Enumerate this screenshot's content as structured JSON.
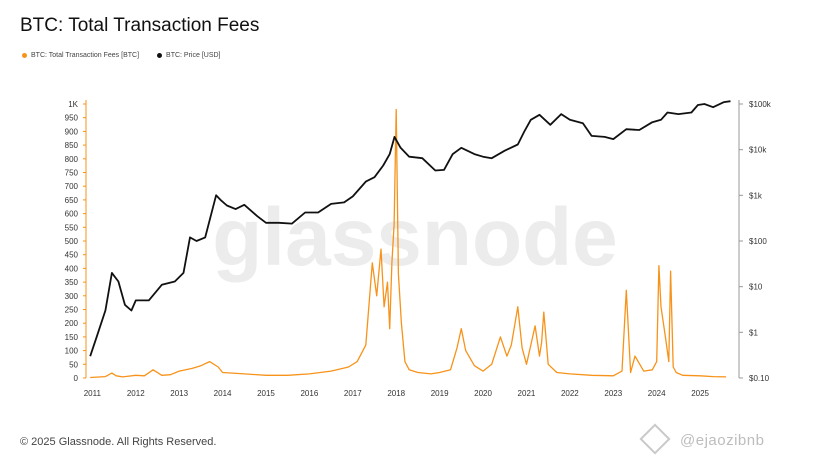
{
  "title": "BTC: Total Transaction Fees",
  "legend": [
    {
      "label": "BTC: Total Transaction Fees [BTC]",
      "color": "#f7931a"
    },
    {
      "label": "BTC: Price [USD]",
      "color": "#111111"
    }
  ],
  "footer": "© 2025 Glassnode. All Rights Reserved.",
  "watermark": "glassnode",
  "handle_watermark": "@ejaozibnb",
  "chart_data": {
    "type": "line",
    "title": "BTC: Total Transaction Fees",
    "x_ticks": [
      "2011",
      "2012",
      "2013",
      "2014",
      "2015",
      "2016",
      "2017",
      "2018",
      "2019",
      "2020",
      "2021",
      "2022",
      "2023",
      "2024",
      "2025"
    ],
    "left_axis": {
      "ticks": [
        "0",
        "50",
        "100",
        "150",
        "200",
        "250",
        "300",
        "350",
        "400",
        "450",
        "500",
        "550",
        "600",
        "650",
        "700",
        "750",
        "800",
        "850",
        "900",
        "950",
        "1K"
      ],
      "ylim": [
        0,
        1000
      ]
    },
    "right_axis": {
      "scale": "log",
      "ticks": [
        "$0.10",
        "$1",
        "$10",
        "$100",
        "$1k",
        "$10k",
        "$100k"
      ],
      "ylim": [
        0.1,
        100000
      ]
    },
    "grid": false,
    "legend_position": "top-left",
    "series": [
      {
        "name": "BTC: Total Transaction Fees [BTC]",
        "axis": "left",
        "color": "#f7931a",
        "x": [
          2010.95,
          2011.3,
          2011.45,
          2011.55,
          2011.7,
          2012.0,
          2012.2,
          2012.4,
          2012.6,
          2012.8,
          2013.0,
          2013.3,
          2013.5,
          2013.7,
          2013.9,
          2014.0,
          2014.5,
          2015.0,
          2015.5,
          2016.0,
          2016.5,
          2016.9,
          2017.1,
          2017.3,
          2017.45,
          2017.55,
          2017.65,
          2017.72,
          2017.8,
          2017.85,
          2017.9,
          2017.95,
          2018.0,
          2018.05,
          2018.12,
          2018.2,
          2018.3,
          2018.5,
          2018.8,
          2019.0,
          2019.25,
          2019.4,
          2019.5,
          2019.6,
          2019.8,
          2020.0,
          2020.2,
          2020.4,
          2020.55,
          2020.65,
          2020.8,
          2020.9,
          2021.0,
          2021.1,
          2021.2,
          2021.3,
          2021.35,
          2021.4,
          2021.5,
          2021.7,
          2022.0,
          2022.5,
          2023.0,
          2023.2,
          2023.3,
          2023.4,
          2023.5,
          2023.7,
          2023.9,
          2024.0,
          2024.05,
          2024.1,
          2024.2,
          2024.28,
          2024.32,
          2024.38,
          2024.45,
          2024.6,
          2025.0,
          2025.3,
          2025.6
        ],
        "values": [
          2,
          5,
          18,
          8,
          4,
          10,
          8,
          30,
          10,
          12,
          25,
          35,
          45,
          60,
          40,
          20,
          15,
          10,
          10,
          15,
          25,
          40,
          60,
          120,
          420,
          300,
          470,
          260,
          350,
          180,
          420,
          560,
          980,
          380,
          200,
          60,
          30,
          20,
          15,
          20,
          30,
          110,
          180,
          100,
          45,
          25,
          50,
          150,
          80,
          120,
          260,
          110,
          50,
          120,
          190,
          80,
          130,
          240,
          50,
          20,
          15,
          10,
          8,
          25,
          320,
          20,
          80,
          25,
          30,
          60,
          410,
          260,
          150,
          60,
          390,
          40,
          20,
          10,
          8,
          5,
          4
        ]
      },
      {
        "name": "BTC: Price [USD]",
        "axis": "right",
        "color": "#111111",
        "x": [
          2010.95,
          2011.1,
          2011.3,
          2011.45,
          2011.6,
          2011.75,
          2011.9,
          2012.0,
          2012.3,
          2012.6,
          2012.9,
          2013.1,
          2013.25,
          2013.4,
          2013.6,
          2013.85,
          2013.95,
          2014.1,
          2014.3,
          2014.5,
          2014.8,
          2015.0,
          2015.3,
          2015.6,
          2015.9,
          2016.2,
          2016.5,
          2016.8,
          2017.0,
          2017.3,
          2017.5,
          2017.7,
          2017.85,
          2017.96,
          2018.1,
          2018.3,
          2018.6,
          2018.9,
          2019.1,
          2019.3,
          2019.5,
          2019.8,
          2020.0,
          2020.2,
          2020.5,
          2020.8,
          2020.95,
          2021.1,
          2021.3,
          2021.55,
          2021.8,
          2022.0,
          2022.3,
          2022.5,
          2022.8,
          2023.0,
          2023.3,
          2023.6,
          2023.9,
          2024.1,
          2024.25,
          2024.5,
          2024.8,
          2024.95,
          2025.1,
          2025.3,
          2025.55,
          2025.7
        ],
        "values": [
          0.3,
          0.8,
          3,
          20,
          13,
          4,
          3,
          5,
          5,
          11,
          13,
          20,
          120,
          100,
          120,
          1000,
          800,
          600,
          500,
          620,
          350,
          250,
          250,
          240,
          420,
          420,
          650,
          700,
          950,
          2000,
          2500,
          4500,
          8000,
          19000,
          11000,
          7000,
          6500,
          3500,
          3600,
          8000,
          11000,
          8000,
          7000,
          6500,
          9500,
          13000,
          25000,
          45000,
          58000,
          35000,
          60000,
          45000,
          38000,
          20000,
          19000,
          17000,
          28000,
          27000,
          40000,
          45000,
          65000,
          60000,
          65000,
          95000,
          100000,
          85000,
          110000,
          115000
        ]
      }
    ]
  }
}
